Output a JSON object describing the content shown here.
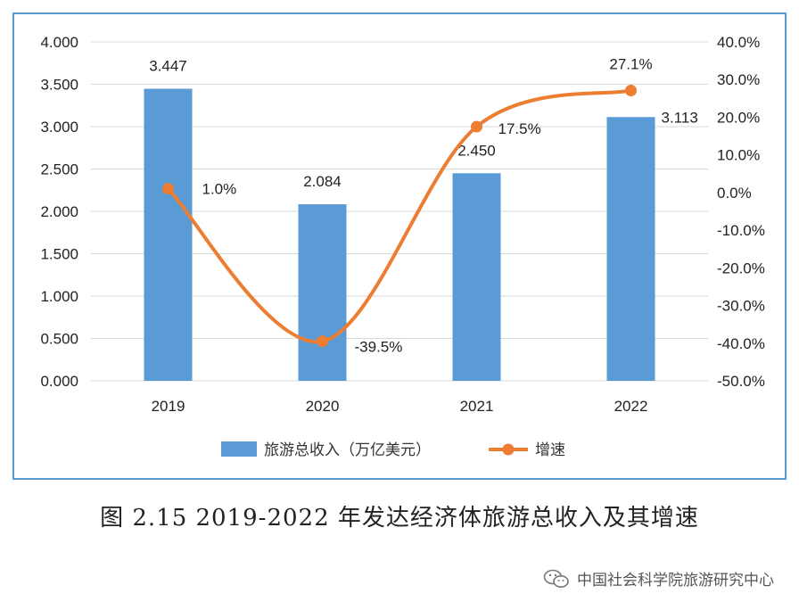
{
  "chart_data": {
    "type": "bar+line",
    "categories": [
      "2019",
      "2020",
      "2021",
      "2022"
    ],
    "series": [
      {
        "name": "旅游总收入（万亿美元）",
        "type": "bar",
        "axis": "left",
        "values": [
          3.447,
          2.084,
          2.45,
          3.113
        ],
        "labels": [
          "3.447",
          "2.084",
          "2.450",
          "3.113"
        ],
        "color": "#5b9bd5"
      },
      {
        "name": "增速",
        "type": "line",
        "axis": "right",
        "values": [
          1.0,
          -39.5,
          17.5,
          27.1
        ],
        "labels": [
          "1.0%",
          "-39.5%",
          "17.5%",
          "27.1%"
        ],
        "color": "#ed7d31"
      }
    ],
    "y_left": {
      "range": [
        0,
        4
      ],
      "ticks": [
        "0.000",
        "0.500",
        "1.000",
        "1.500",
        "2.000",
        "2.500",
        "3.000",
        "3.500",
        "4.000"
      ]
    },
    "y_right": {
      "range": [
        -50,
        40
      ],
      "ticks": [
        "-50.0%",
        "-40.0%",
        "-30.0%",
        "-20.0%",
        "-10.0%",
        "0.0%",
        "10.0%",
        "20.0%",
        "30.0%",
        "40.0%"
      ]
    },
    "grid": true,
    "legend_position": "bottom"
  },
  "caption": "图 2.15 2019-2022 年发达经济体旅游总收入及其增速",
  "watermark": "中国社会科学院旅游研究中心",
  "colors": {
    "bar": "#5b9bd5",
    "line": "#ed7d31",
    "frame": "#5b9bd5",
    "grid": "#d9d9d9"
  }
}
